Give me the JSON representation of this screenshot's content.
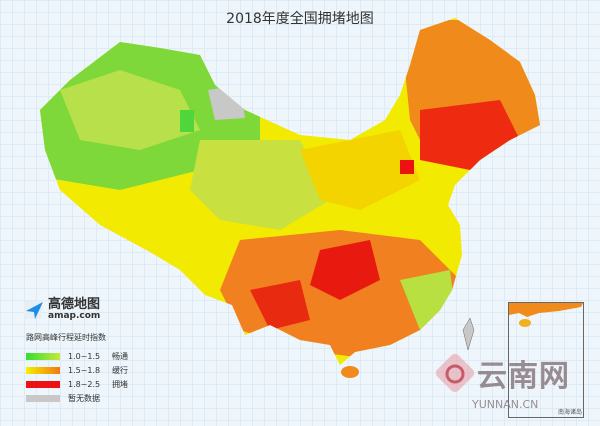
{
  "title": "2018年度全国拥堵地图",
  "logo": {
    "name": "高德地图",
    "url": "amap.com"
  },
  "legend": {
    "title": "路网高峰行程延时指数",
    "items": [
      {
        "range": "1.0~1.5",
        "label": "畅通",
        "color_from": "#33dd33",
        "color_to": "#c8e83a"
      },
      {
        "range": "1.5~1.8",
        "label": "缓行",
        "color_from": "#f5f000",
        "color_to": "#f07a10"
      },
      {
        "range": "1.8~2.5",
        "label": "拥堵",
        "color_from": "#ee1111",
        "color_to": "#ee1111"
      },
      {
        "range": "",
        "label": "暂无数据",
        "color_from": "#c8c8c8",
        "color_to": "#c8c8c8"
      }
    ]
  },
  "watermark": {
    "cn": "云南网",
    "en": "YUNNAN.CN"
  },
  "inset": {
    "label": "南海诸岛"
  }
}
